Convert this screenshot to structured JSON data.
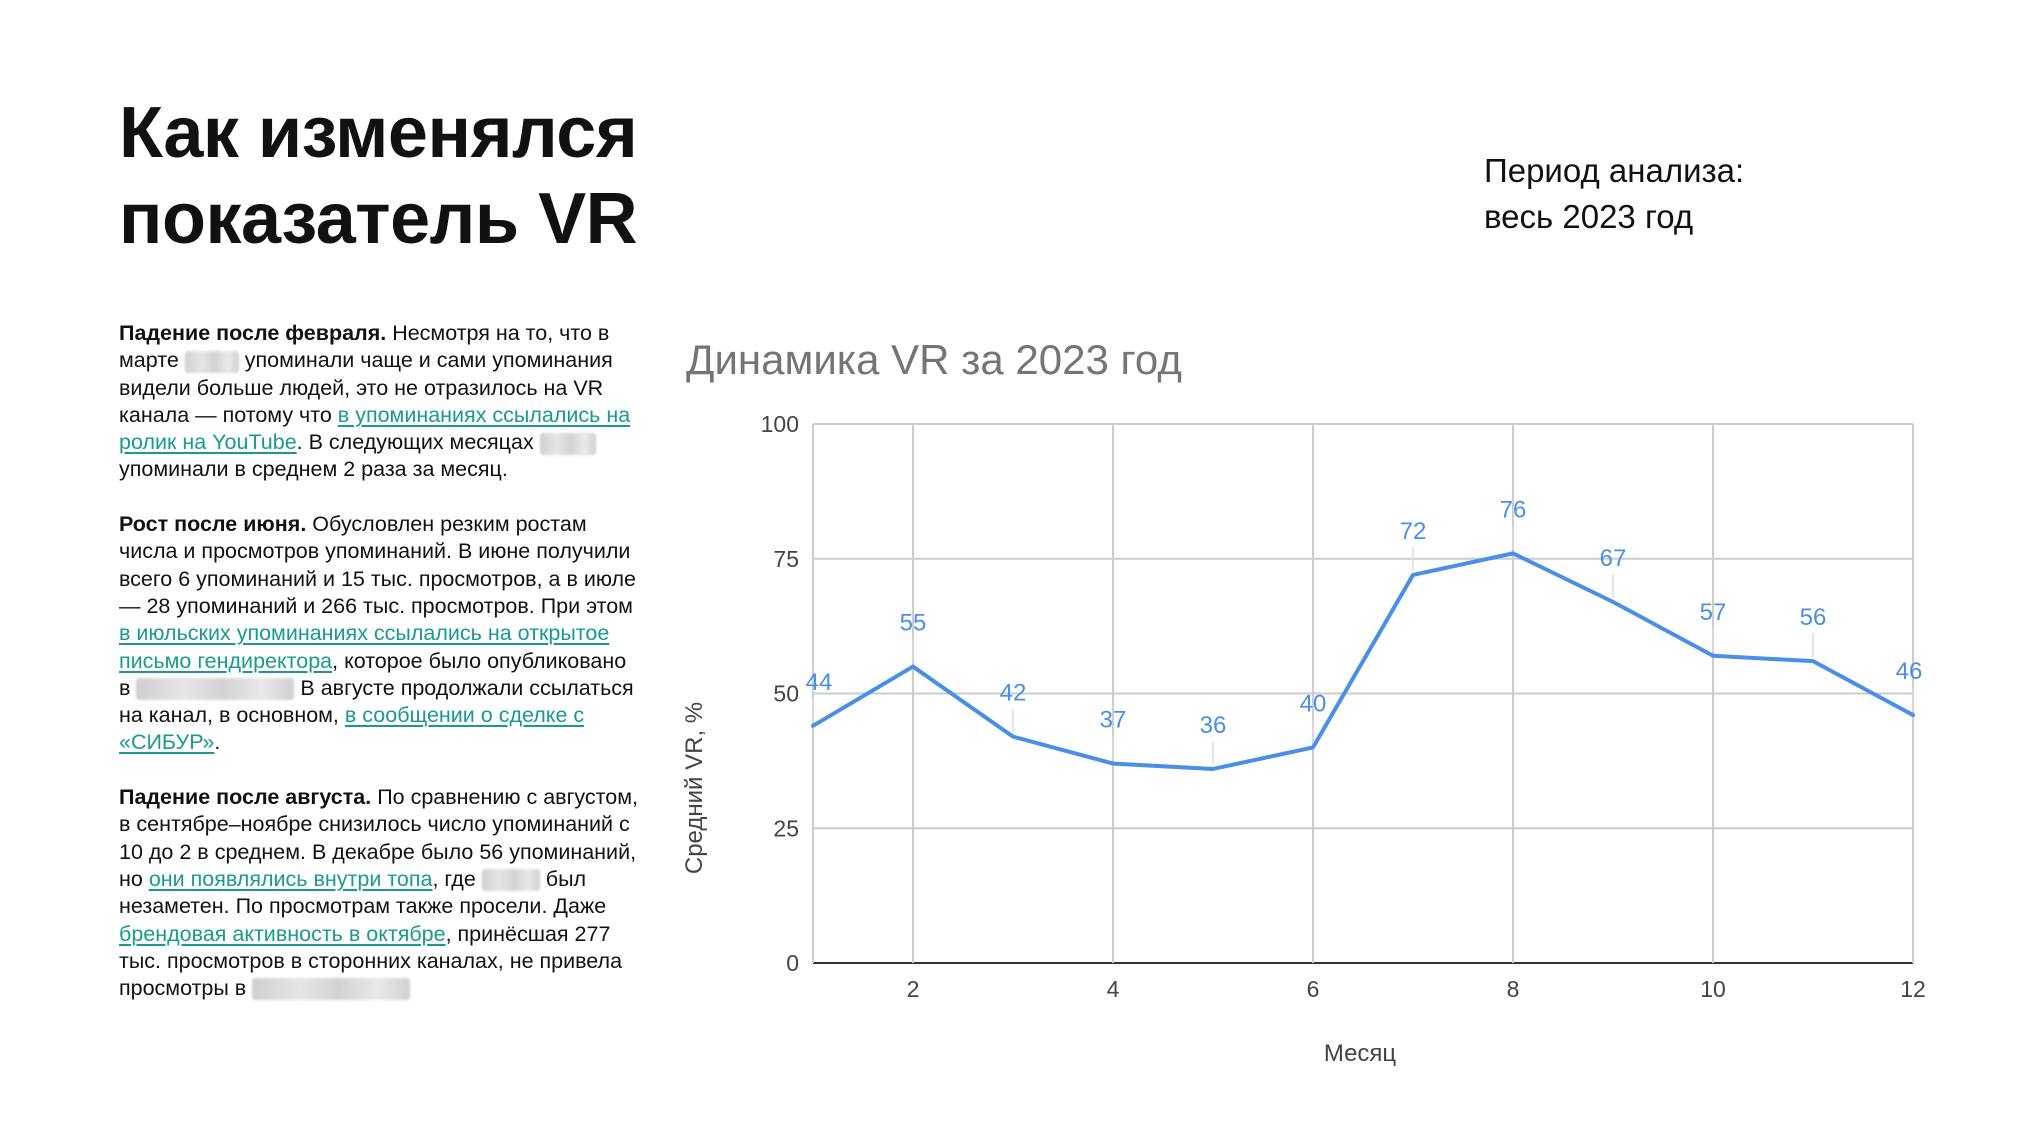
{
  "header": {
    "title_line1": "Как изменялся",
    "title_line2": "показатель VR",
    "period_line1": "Период анализа:",
    "period_line2": "весь 2023 год"
  },
  "text": {
    "p1_bold": "Падение после февраля.",
    "p1_a": " Несмотря на то, что в марте ",
    "p1_b": " упоминали чаще и сами упоминания видели больше людей, это не отразилось на VR канала — потому что ",
    "p1_link": "в упоминаниях ссылались на ролик на YouTube",
    "p1_c": ". В следующих месяцах ",
    "p1_d": " упоминали в среднем 2 раза за месяц.",
    "p2_bold": "Рост после июня.",
    "p2_a": " Обусловлен резким ростам числа и просмотров упоминаний. В июне получили всего 6 упоминаний и 15 тыс. просмотров, а в июле — 28 упоминаний и 266 тыс. просмотров. При этом ",
    "p2_link1": "в июльских упоминаниях ссылались на открытое письмо гендиректора",
    "p2_b": ", которое было опубликовано в ",
    "p2_c": " В августе продолжали ссылаться на канал, в основном, ",
    "p2_link2": "в сообщении о сделке с «СИБУР»",
    "p2_d": ".",
    "p3_bold": "Падение после августа.",
    "p3_a": " По сравнению с августом, в сентябре–ноябре снизилось число упоминаний с 10 до 2 в среднем. В декабре было 56 упоминаний, но ",
    "p3_link1": "они появлялись внутри топа",
    "p3_b": ", где ",
    "p3_c": " был незаметен. По просмотрам также просели. Даже ",
    "p3_link2": "брендовая активность в октябре",
    "p3_d": ", принёсшая 277 тыс. просмотров в сторонних каналах, не привела просмотры в "
  },
  "chart_data": {
    "type": "line",
    "title": "Динамика VR за 2023 год",
    "xlabel": "Месяц",
    "ylabel": "Средний VR, %",
    "x": [
      1,
      2,
      3,
      4,
      5,
      6,
      7,
      8,
      9,
      10,
      11,
      12
    ],
    "values": [
      44,
      55,
      42,
      37,
      36,
      40,
      72,
      76,
      67,
      57,
      56,
      46
    ],
    "value_labels": [
      "44",
      "55",
      "42",
      "37",
      "36",
      "40",
      "72",
      "76",
      "67",
      "57",
      "56",
      "46"
    ],
    "xlim": [
      1,
      12
    ],
    "ylim": [
      0,
      100
    ],
    "x_ticks": [
      "2",
      "4",
      "6",
      "8",
      "10",
      "12"
    ],
    "y_ticks": [
      "0",
      "25",
      "50",
      "75",
      "100"
    ],
    "grid": true,
    "line_color": "#4a8fe7",
    "label_color": "#4a8fe7",
    "grid_color": "#cccccc"
  }
}
